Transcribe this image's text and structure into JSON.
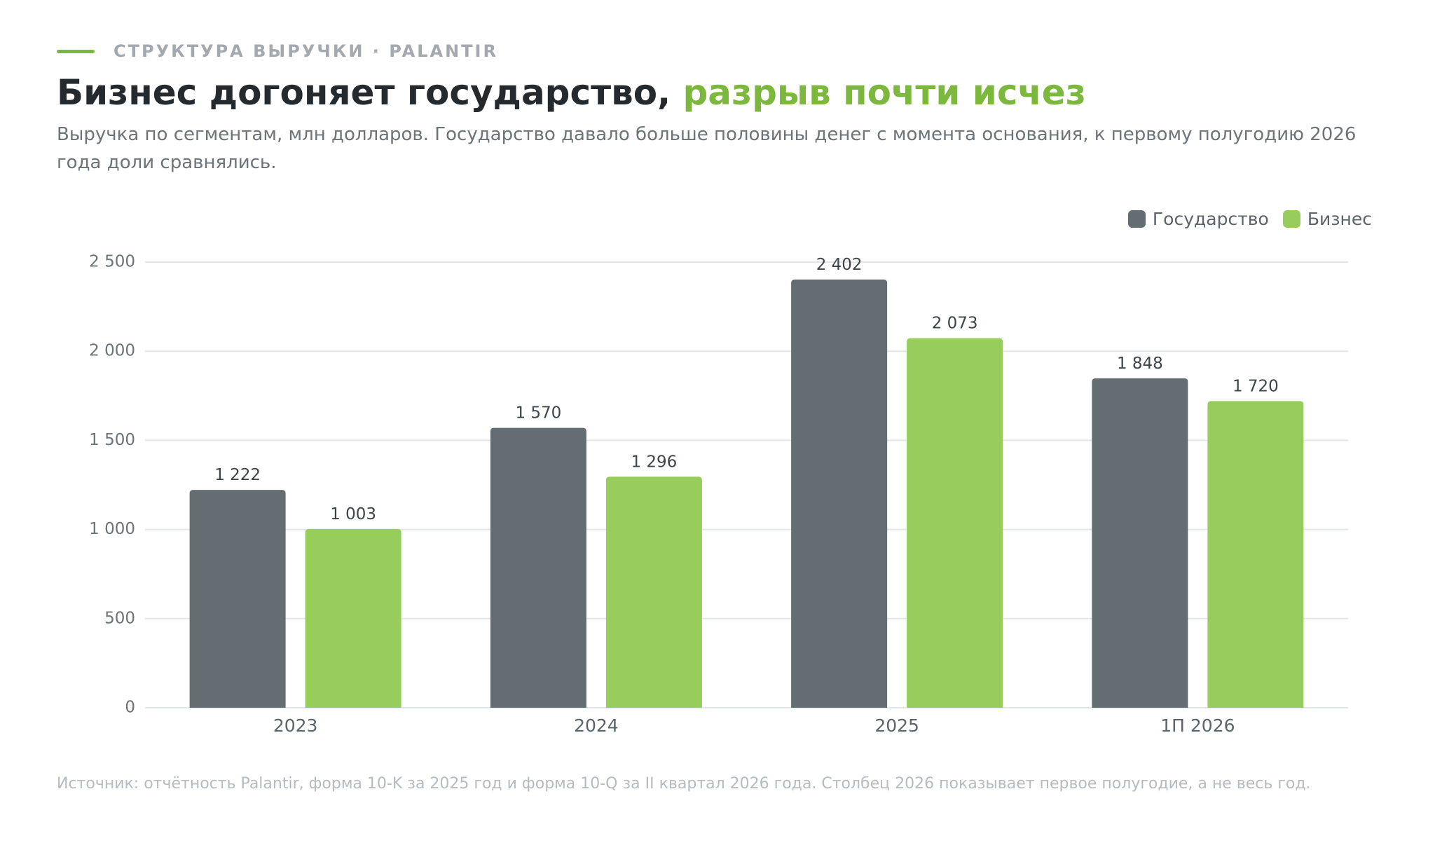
{
  "header": {
    "kicker": "СТРУКТУРА ВЫРУЧКИ · PALANTIR",
    "title_main": "Бизнес догоняет государство,",
    "title_accent": "разрыв почти исчез",
    "subtitle": "Выручка по сегментам, млн долларов. Государство давало больше половины денег с момента основания, к первому полугодию 2026 года доли сравнялись."
  },
  "source": "Источник: отчётность Palantir, форма 10-K за 2025 год и форма 10-Q за II квартал 2026 года. Столбец 2026 показывает первое полугодие, а не весь год.",
  "colors": {
    "government": "#636d72",
    "business": "#97ce5b",
    "accent": "#7cb83e",
    "grid": "#e3e6e8"
  },
  "chart_data": {
    "type": "bar",
    "categories": [
      "2023",
      "2024",
      "2025",
      "1П 2026"
    ],
    "series": [
      {
        "name": "Государство",
        "values": [
          1222,
          1570,
          2402,
          1848
        ],
        "labels": [
          "1 222",
          "1 570",
          "2 402",
          "1 848"
        ]
      },
      {
        "name": "Бизнес",
        "values": [
          1003,
          1296,
          2073,
          1720
        ],
        "labels": [
          "1 003",
          "1 296",
          "2 073",
          "1 720"
        ]
      }
    ],
    "ylim": [
      0,
      2500
    ],
    "yticks": [
      0,
      500,
      1000,
      1500,
      2000,
      2500
    ],
    "ytick_labels": [
      "0",
      "500",
      "1 000",
      "1 500",
      "2 000",
      "2 500"
    ],
    "grid": true,
    "legend_position": "top-right",
    "xlabel": "",
    "ylabel": ""
  }
}
